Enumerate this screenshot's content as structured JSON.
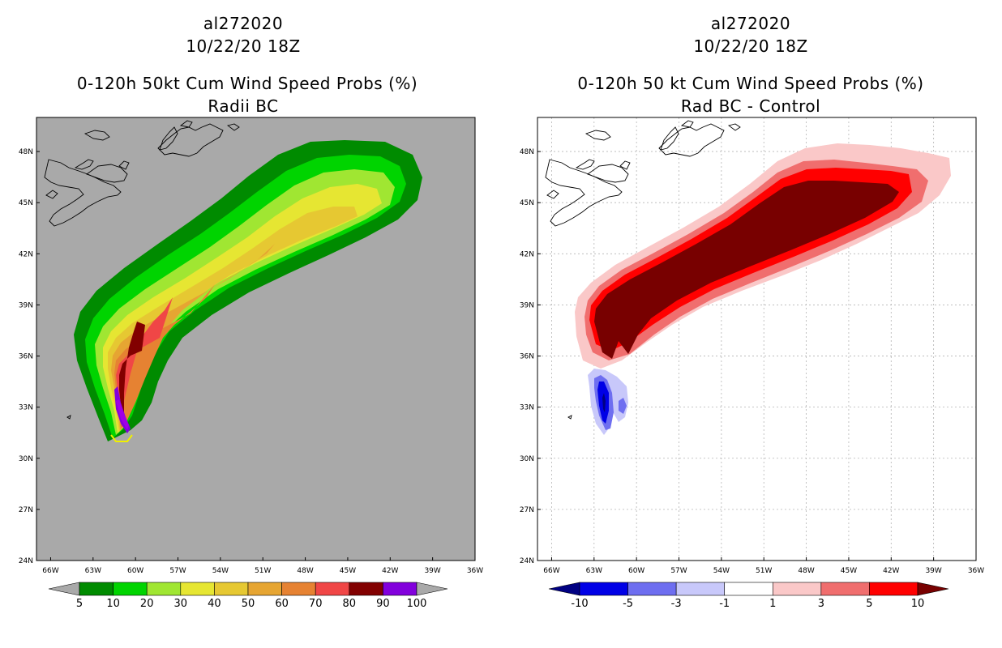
{
  "panels": [
    {
      "id": "left",
      "storm_id": "al272020",
      "date": "10/22/20 18Z",
      "title_line1": "0-120h 50kt Cum Wind Speed Probs (%)",
      "title_line2": "Radii BC",
      "background": "#a9a9a9",
      "gridlines": false,
      "lat_ticks": [
        "48N",
        "45N",
        "42N",
        "39N",
        "36N",
        "33N",
        "30N",
        "27N",
        "24N"
      ],
      "lon_ticks": [
        "66W",
        "63W",
        "60W",
        "57W",
        "54W",
        "51W",
        "48W",
        "45W",
        "42W",
        "39W",
        "36W"
      ],
      "colorbar": {
        "colors": [
          "#008b00",
          "#00d400",
          "#a0e632",
          "#e6e632",
          "#e6c832",
          "#e6a532",
          "#e68232",
          "#f04646",
          "#820000",
          "#8200dc"
        ],
        "under_color": "#a9a9a9",
        "over_color": "#a9a9a9",
        "labels": [
          "5",
          "10",
          "20",
          "30",
          "40",
          "50",
          "60",
          "70",
          "80",
          "90",
          "100"
        ]
      }
    },
    {
      "id": "right",
      "storm_id": "al272020",
      "date": "10/22/20 18Z",
      "title_line1": "0-120h 50 kt Cum Wind Speed Probs (%)",
      "title_line2": "Rad BC - Control",
      "background": "#ffffff",
      "gridlines": true,
      "lat_ticks": [
        "48N",
        "45N",
        "42N",
        "39N",
        "36N",
        "33N",
        "30N",
        "27N",
        "24N"
      ],
      "lon_ticks": [
        "66W",
        "63W",
        "60W",
        "57W",
        "54W",
        "51W",
        "48W",
        "45W",
        "42W",
        "39W",
        "36W"
      ],
      "colorbar": {
        "colors": [
          "#0000e6",
          "#6e6ef0",
          "#c8c8fa",
          "#ffffff",
          "#fac8c8",
          "#f06e6e",
          "#ff0000"
        ],
        "under_color": "#000082",
        "over_color": "#780000",
        "labels": [
          "-10",
          "-5",
          "-3",
          "-1",
          "1",
          "3",
          "5",
          "10"
        ]
      }
    }
  ],
  "map_extent": {
    "lon_west": -67,
    "lon_east": -36,
    "lat_south": 24,
    "lat_north": 50
  }
}
